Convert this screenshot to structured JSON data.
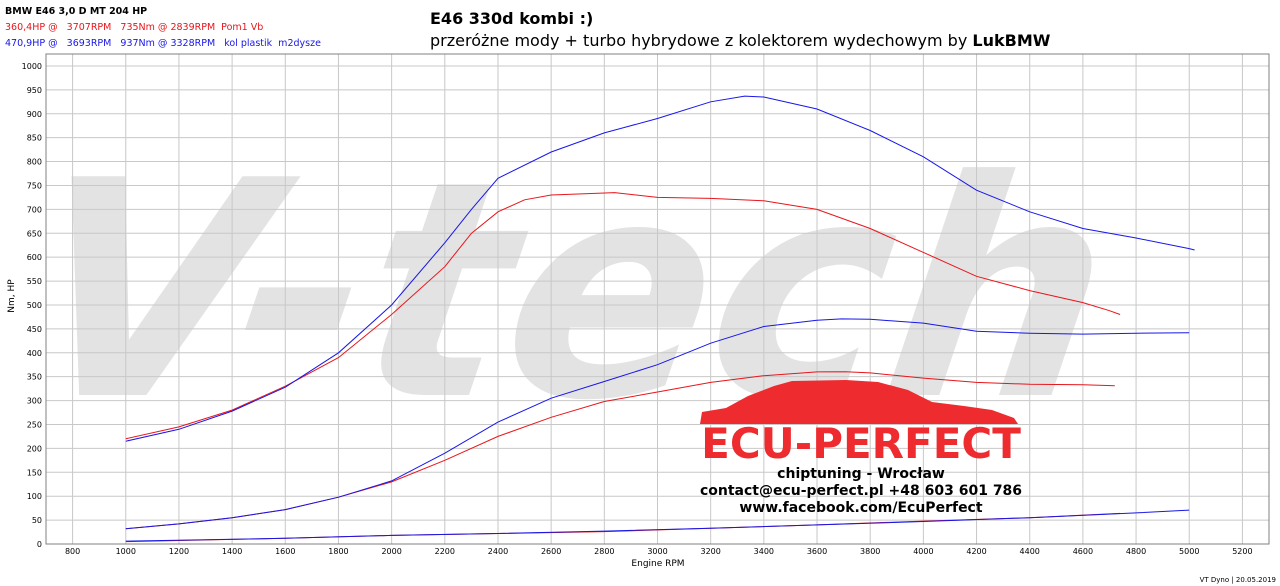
{
  "legend": {
    "title": "BMW E46 3,0 D MT 204 HP",
    "red_line": "360,4HP @   3707RPM   735Nm @ 2839RPM  Pom1 Vb",
    "blue_line": "470,9HP @   3693RPM   937Nm @ 3328RPM   kol plastik  m2dysze"
  },
  "title": {
    "line1": "E46 330d kombi :)",
    "line2_prefix": "przeróżne mody + turbo hybrydowe z kolektorem wydechowym by ",
    "line2_bold": "LukBMW"
  },
  "watermark": "V-tech",
  "logo": {
    "brand": "ECU-PERFECT",
    "line1": "chiptuning - Wrocław",
    "line2": "contact@ecu-perfect.pl +48 603 601 786",
    "line3": "www.facebook.com/EcuPerfect"
  },
  "footer": "VT Dyno | 20.05.2019",
  "colors": {
    "red": "#e8161b",
    "blue": "#1717e8",
    "grid": "#c8c8c8",
    "watermark": "#e3e3e3",
    "logo_red": "#ee2b2f"
  },
  "chart_data": {
    "type": "line",
    "xlabel": "Engine RPM",
    "ylabel": "Nm, HP",
    "xlim": [
      700,
      5300
    ],
    "ylim": [
      0,
      1025
    ],
    "xticks": [
      800,
      1000,
      1200,
      1400,
      1600,
      1800,
      2000,
      2200,
      2400,
      2600,
      2800,
      3000,
      3200,
      3400,
      3600,
      3800,
      4000,
      4200,
      4400,
      4600,
      4800,
      5000,
      5200
    ],
    "yticks": [
      0,
      50,
      100,
      150,
      200,
      250,
      300,
      350,
      400,
      450,
      500,
      550,
      600,
      650,
      700,
      750,
      800,
      850,
      900,
      950,
      1000
    ],
    "grid": true,
    "series": [
      {
        "name": "",
        "color": "red",
        "points": [
          [
            1000,
            220
          ],
          [
            1200,
            245
          ],
          [
            1400,
            280
          ],
          [
            1600,
            330
          ],
          [
            1800,
            390
          ],
          [
            2000,
            480
          ],
          [
            2200,
            580
          ],
          [
            2300,
            650
          ],
          [
            2400,
            695
          ],
          [
            2500,
            720
          ],
          [
            2600,
            730
          ],
          [
            2839,
            735
          ],
          [
            3000,
            725
          ],
          [
            3200,
            723
          ],
          [
            3400,
            718
          ],
          [
            3600,
            700
          ],
          [
            3800,
            660
          ],
          [
            4000,
            610
          ],
          [
            4200,
            560
          ],
          [
            4400,
            530
          ],
          [
            4600,
            505
          ],
          [
            4700,
            488
          ],
          [
            4740,
            480
          ]
        ]
      },
      {
        "name": "",
        "color": "blue",
        "points": [
          [
            1000,
            215
          ],
          [
            1200,
            240
          ],
          [
            1400,
            278
          ],
          [
            1600,
            328
          ],
          [
            1800,
            400
          ],
          [
            2000,
            500
          ],
          [
            2200,
            630
          ],
          [
            2300,
            700
          ],
          [
            2400,
            765
          ],
          [
            2600,
            820
          ],
          [
            2800,
            860
          ],
          [
            3000,
            890
          ],
          [
            3200,
            925
          ],
          [
            3328,
            937
          ],
          [
            3400,
            935
          ],
          [
            3600,
            910
          ],
          [
            3800,
            865
          ],
          [
            4000,
            810
          ],
          [
            4200,
            740
          ],
          [
            4400,
            695
          ],
          [
            4600,
            660
          ],
          [
            4800,
            640
          ],
          [
            5000,
            618
          ],
          [
            5020,
            615
          ]
        ]
      },
      {
        "name": "",
        "color": "red",
        "points": [
          [
            1000,
            32
          ],
          [
            1200,
            42
          ],
          [
            1400,
            55
          ],
          [
            1600,
            72
          ],
          [
            1800,
            98
          ],
          [
            2000,
            130
          ],
          [
            2200,
            175
          ],
          [
            2400,
            225
          ],
          [
            2600,
            265
          ],
          [
            2800,
            298
          ],
          [
            3000,
            318
          ],
          [
            3200,
            338
          ],
          [
            3400,
            352
          ],
          [
            3600,
            360
          ],
          [
            3707,
            360.4
          ],
          [
            3800,
            358
          ],
          [
            4000,
            347
          ],
          [
            4200,
            338
          ],
          [
            4400,
            334
          ],
          [
            4600,
            333
          ],
          [
            4720,
            331
          ]
        ]
      },
      {
        "name": "",
        "color": "blue",
        "points": [
          [
            1000,
            32
          ],
          [
            1200,
            42
          ],
          [
            1400,
            55
          ],
          [
            1600,
            72
          ],
          [
            1800,
            98
          ],
          [
            2000,
            132
          ],
          [
            2200,
            190
          ],
          [
            2400,
            255
          ],
          [
            2600,
            305
          ],
          [
            2800,
            340
          ],
          [
            3000,
            375
          ],
          [
            3200,
            420
          ],
          [
            3400,
            455
          ],
          [
            3600,
            468
          ],
          [
            3693,
            470.9
          ],
          [
            3800,
            470
          ],
          [
            4000,
            462
          ],
          [
            4200,
            445
          ],
          [
            4400,
            441
          ],
          [
            4600,
            439
          ],
          [
            4800,
            441
          ],
          [
            5000,
            442
          ]
        ]
      },
      {
        "name": "",
        "color": "red",
        "points": [
          [
            1000,
            5
          ],
          [
            1600,
            12
          ],
          [
            2000,
            18
          ],
          [
            2400,
            22
          ],
          [
            2800,
            26
          ],
          [
            3200,
            33
          ],
          [
            3600,
            40
          ],
          [
            4000,
            48
          ],
          [
            4400,
            55
          ],
          [
            4700,
            63
          ],
          [
            4740,
            64
          ]
        ]
      },
      {
        "name": "",
        "color": "blue",
        "points": [
          [
            1000,
            6
          ],
          [
            1600,
            12
          ],
          [
            2000,
            18
          ],
          [
            2400,
            22
          ],
          [
            2800,
            27
          ],
          [
            3200,
            33
          ],
          [
            3600,
            40
          ],
          [
            4000,
            47
          ],
          [
            4400,
            55
          ],
          [
            4800,
            65
          ],
          [
            5000,
            71
          ]
        ]
      }
    ]
  }
}
